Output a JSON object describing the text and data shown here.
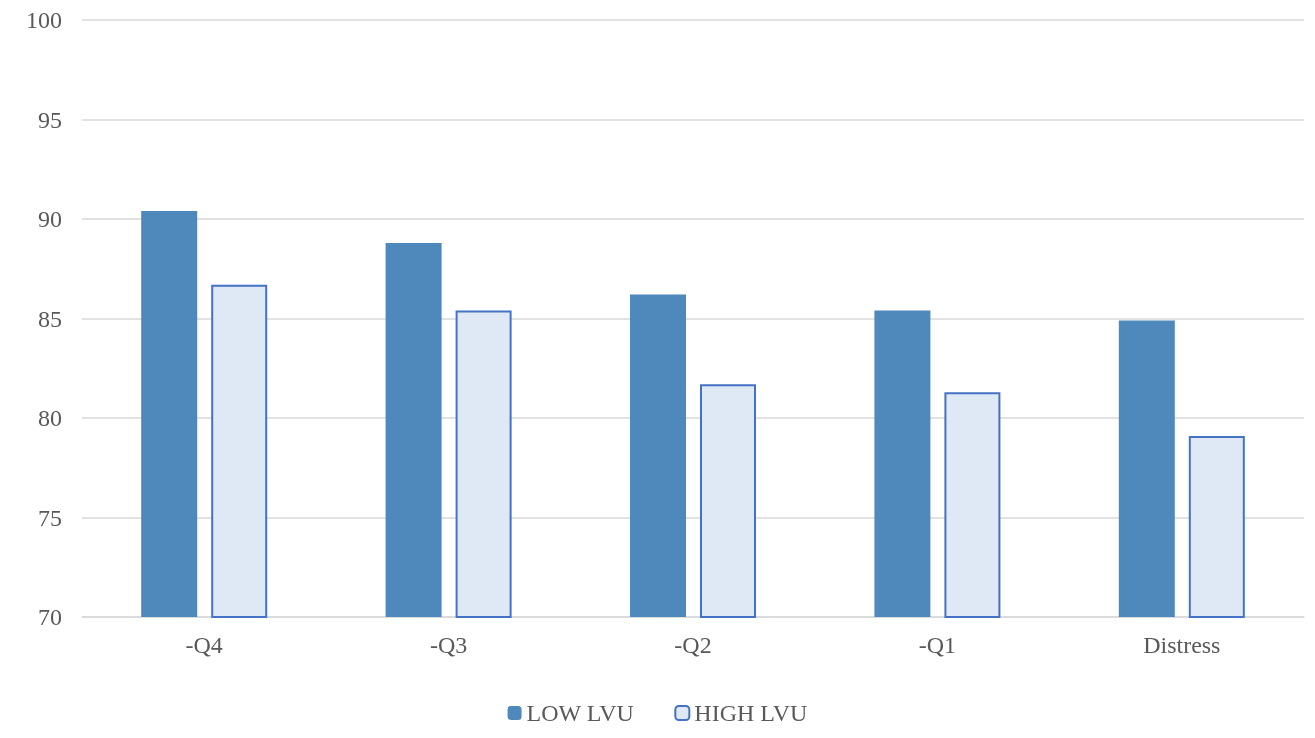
{
  "chart_data": {
    "type": "bar",
    "categories": [
      "-Q4",
      "-Q3",
      "-Q2",
      "-Q1",
      "Distress"
    ],
    "series": [
      {
        "name": "LOW LVU",
        "color": "#4f88bb",
        "values": [
          90.4,
          88.8,
          86.2,
          85.4,
          84.9
        ]
      },
      {
        "name": "HIGH LVU",
        "color": "#dfe9f5",
        "values": [
          86.7,
          85.4,
          81.7,
          81.3,
          79.1
        ]
      }
    ],
    "ylim": [
      70,
      100
    ],
    "yticks": [
      70,
      75,
      80,
      85,
      90,
      95,
      100
    ],
    "grid": "y",
    "legend": "bottom"
  }
}
